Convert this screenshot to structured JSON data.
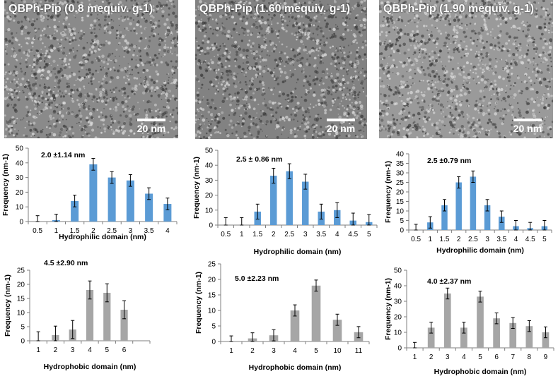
{
  "micrographs": [
    {
      "title": "QBPh-Pip (0.8 mequiv. g-1)",
      "scale_label": "20 nm",
      "tone": "#8a8a8a"
    },
    {
      "title": "QBPh-Pip (1.60 mequiv. g-1)",
      "scale_label": "20 nm",
      "tone": "#828282"
    },
    {
      "title": "QBPh-Pip (1.90 mequiv. g-1)",
      "scale_label": "20 nm",
      "tone": "#9a9a9a"
    }
  ],
  "colors": {
    "hydrophilic_bar": "#5b9bd5",
    "hydrophobic_bar": "#a6a6a6",
    "axis": "#7f7f7f"
  },
  "chart_data": [
    {
      "type": "bar",
      "stat_label": "2.0 ±1.14 nm",
      "xlabel": "Hydrophilic domain (nm)",
      "ylabel": "Frequency (nm-1)",
      "categories": [
        "0.5",
        "1",
        "1.5",
        "2",
        "2.5",
        "3",
        "3.5",
        "4"
      ],
      "values": [
        0,
        1,
        14,
        39,
        30,
        28,
        19,
        12
      ],
      "errors": [
        4,
        4,
        4,
        4,
        4,
        4,
        4,
        4
      ],
      "ylim": [
        0,
        50
      ],
      "yticks": [
        "0",
        "10",
        "20",
        "30",
        "40",
        "50"
      ],
      "series_color": "hydrophilic"
    },
    {
      "type": "bar",
      "stat_label": "2.5 ± 0.86 nm",
      "xlabel": "Hydrophilic domain (nm)",
      "ylabel": "Frequency (nm-1)",
      "categories": [
        "0.5",
        "1",
        "1.5",
        "2",
        "2.5",
        "3",
        "3.5",
        "4",
        "4.5",
        "5"
      ],
      "values": [
        0,
        0,
        9,
        33,
        36,
        29,
        9,
        10,
        3,
        2
      ],
      "errors": [
        5,
        5,
        5,
        5,
        5,
        5,
        5,
        5,
        5,
        5
      ],
      "ylim": [
        0,
        50
      ],
      "yticks": [
        "0",
        "10",
        "20",
        "30",
        "40",
        "50"
      ],
      "series_color": "hydrophilic"
    },
    {
      "type": "bar",
      "stat_label": "2.5 ±0.79 nm",
      "xlabel": "Hydrophilic domain (nm)",
      "ylabel": "Frequency (nm-1)",
      "categories": [
        "0.5",
        "1",
        "1.5",
        "2",
        "2.5",
        "3",
        "3.5",
        "4",
        "4.5",
        "5"
      ],
      "values": [
        0,
        4,
        13,
        25,
        28,
        13,
        7,
        2,
        1,
        2
      ],
      "errors": [
        3,
        3,
        3,
        3,
        3,
        3,
        3,
        3,
        3,
        3
      ],
      "ylim": [
        0,
        40
      ],
      "yticks": [
        "0",
        "5",
        "10",
        "15",
        "20",
        "25",
        "30",
        "35",
        "40"
      ],
      "series_color": "hydrophilic"
    },
    {
      "type": "bar",
      "stat_label": "4.5 ±2.90 nm",
      "xlabel": "Hydrophobic domain (nm)",
      "ylabel": "Frequency (nm-1)",
      "categories": [
        "1",
        "2",
        "3",
        "4",
        "5",
        "6",
        ""
      ],
      "values": [
        0,
        2,
        4,
        18,
        17,
        11,
        null
      ],
      "errors": [
        3.2,
        3.2,
        3.2,
        3.2,
        3.2,
        3.2,
        null
      ],
      "ylim": [
        0,
        25
      ],
      "yticks": [
        "0",
        "5",
        "10",
        "15",
        "20",
        "25"
      ],
      "series_color": "hydrophobic"
    },
    {
      "type": "bar",
      "stat_label": "5.0 ±2.23 nm",
      "xlabel": "Hydrophobic domain (nm)",
      "ylabel": "Frequency (nm-1)",
      "categories": [
        "1",
        "2",
        "3",
        "4",
        "5",
        "10",
        "11"
      ],
      "values": [
        0,
        1,
        2,
        10,
        18,
        7,
        3
      ],
      "errors": [
        1.8,
        1.8,
        1.8,
        1.8,
        1.8,
        1.8,
        1.8
      ],
      "ylim": [
        0,
        25
      ],
      "yticks": [
        "0",
        "5",
        "10",
        "15",
        "20",
        "25"
      ],
      "series_color": "hydrophobic"
    },
    {
      "type": "bar",
      "stat_label": "4.0 ±2.37 nm",
      "xlabel": "Hydrophobic domain (nm)",
      "ylabel": "Frequency (nm-1)",
      "categories": [
        "1",
        "2",
        "3",
        "4",
        "5",
        "6",
        "7",
        "8",
        "9"
      ],
      "values": [
        0,
        13,
        35,
        13,
        33,
        19,
        16,
        14,
        10
      ],
      "errors": [
        3.5,
        3.5,
        3.5,
        3.5,
        3.5,
        3.5,
        3.5,
        3.5,
        3.5
      ],
      "ylim": [
        0,
        50
      ],
      "yticks": [
        "0",
        "10",
        "20",
        "30",
        "40",
        "50"
      ],
      "series_color": "hydrophobic"
    }
  ]
}
